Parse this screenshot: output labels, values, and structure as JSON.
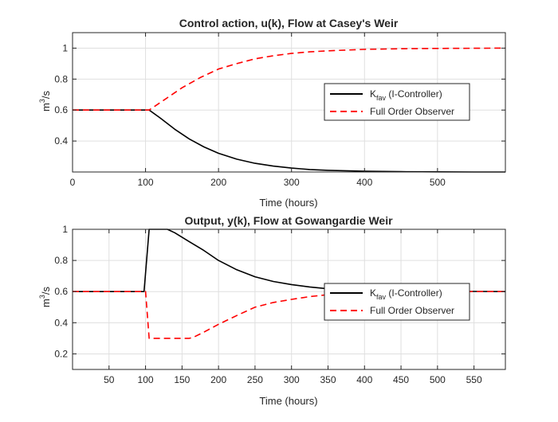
{
  "chart_data": [
    {
      "type": "line",
      "title": "Control action, u(k), Flow at Casey's Weir",
      "xlabel": "Time (hours)",
      "ylabel_base": "m",
      "ylabel_sup": "3",
      "ylabel_rest": "/s",
      "xlim": [
        0,
        593
      ],
      "ylim": [
        0.2,
        1.1
      ],
      "xticks": [
        0,
        100,
        200,
        300,
        400,
        500
      ],
      "yticks": [
        0.4,
        0.6,
        0.8,
        1
      ],
      "grid": true,
      "legend_position": "right",
      "series": [
        {
          "name_main": "K",
          "name_sub": "fav",
          "name_rest": " (I-Controller)",
          "color": "#000000",
          "dash": "solid",
          "x": [
            0,
            50,
            105,
            120,
            140,
            160,
            180,
            200,
            225,
            250,
            275,
            300,
            325,
            350,
            400,
            450,
            500,
            550,
            593
          ],
          "y": [
            0.6,
            0.6,
            0.6,
            0.549,
            0.476,
            0.413,
            0.362,
            0.321,
            0.283,
            0.256,
            0.238,
            0.225,
            0.216,
            0.211,
            0.205,
            0.202,
            0.201,
            0.2,
            0.2
          ]
        },
        {
          "name_main": "Full Order Observer",
          "name_sub": "",
          "name_rest": "",
          "color": "#ff0000",
          "dash": "dashed",
          "x": [
            0,
            50,
            105,
            125,
            150,
            175,
            200,
            225,
            250,
            275,
            300,
            325,
            350,
            400,
            450,
            500,
            550,
            593
          ],
          "y": [
            0.6,
            0.6,
            0.6,
            0.664,
            0.744,
            0.81,
            0.865,
            0.9,
            0.931,
            0.951,
            0.966,
            0.976,
            0.983,
            0.992,
            0.996,
            0.998,
            0.999,
            1.0
          ]
        }
      ]
    },
    {
      "type": "line",
      "title": "Output, y(k), Flow at Gowangardie Weir",
      "xlabel": "Time (hours)",
      "ylabel_base": "m",
      "ylabel_sup": "3",
      "ylabel_rest": "/s",
      "xlim": [
        0,
        593
      ],
      "ylim": [
        0.1,
        1.0
      ],
      "xticks": [
        50,
        100,
        150,
        200,
        250,
        300,
        350,
        400,
        450,
        500,
        550
      ],
      "yticks": [
        0.2,
        0.4,
        0.6,
        0.8,
        1
      ],
      "grid": true,
      "legend_position": "right",
      "series": [
        {
          "name_main": "K",
          "name_sub": "fav",
          "name_rest": " (I-Controller)",
          "color": "#000000",
          "dash": "solid",
          "x": [
            0,
            50,
            98,
            105,
            115,
            125,
            130,
            140,
            160,
            180,
            200,
            225,
            250,
            275,
            300,
            325,
            350,
            400,
            450,
            500,
            550,
            593
          ],
          "y": [
            0.6,
            0.6,
            0.6,
            1.0,
            1.0,
            1.0,
            1.0,
            0.978,
            0.92,
            0.864,
            0.8,
            0.74,
            0.695,
            0.665,
            0.645,
            0.63,
            0.618,
            0.609,
            0.604,
            0.602,
            0.601,
            0.6
          ]
        },
        {
          "name_main": "Full Order Observer",
          "name_sub": "",
          "name_rest": "",
          "color": "#ff0000",
          "dash": "dashed",
          "x": [
            0,
            50,
            100,
            105,
            130,
            160,
            165,
            180,
            200,
            225,
            250,
            275,
            300,
            325,
            350,
            400,
            450,
            500,
            550,
            593
          ],
          "y": [
            0.6,
            0.6,
            0.6,
            0.3,
            0.3,
            0.3,
            0.305,
            0.34,
            0.39,
            0.446,
            0.5,
            0.53,
            0.55,
            0.568,
            0.58,
            0.592,
            0.597,
            0.599,
            0.6,
            0.6
          ]
        }
      ]
    }
  ]
}
